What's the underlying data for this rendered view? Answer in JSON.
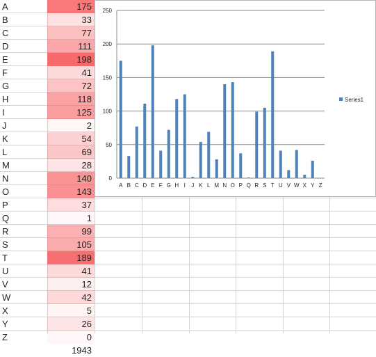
{
  "sheet": {
    "rows": [
      {
        "label": "A",
        "value": 175
      },
      {
        "label": "B",
        "value": 33
      },
      {
        "label": "C",
        "value": 77
      },
      {
        "label": "D",
        "value": 111
      },
      {
        "label": "E",
        "value": 198
      },
      {
        "label": "F",
        "value": 41
      },
      {
        "label": "G",
        "value": 72
      },
      {
        "label": "H",
        "value": 118
      },
      {
        "label": "I",
        "value": 125
      },
      {
        "label": "J",
        "value": 2
      },
      {
        "label": "K",
        "value": 54
      },
      {
        "label": "L",
        "value": 69
      },
      {
        "label": "M",
        "value": 28
      },
      {
        "label": "N",
        "value": 140
      },
      {
        "label": "O",
        "value": 143
      },
      {
        "label": "P",
        "value": 37
      },
      {
        "label": "Q",
        "value": 1
      },
      {
        "label": "R",
        "value": 99
      },
      {
        "label": "S",
        "value": 105
      },
      {
        "label": "T",
        "value": 189
      },
      {
        "label": "U",
        "value": 41
      },
      {
        "label": "V",
        "value": 12
      },
      {
        "label": "W",
        "value": 42
      },
      {
        "label": "X",
        "value": 5
      },
      {
        "label": "Y",
        "value": 26
      },
      {
        "label": "Z",
        "value": 0
      }
    ],
    "total": "1943",
    "heat_color": "#f8696b"
  },
  "chart_data": {
    "type": "bar",
    "categories": [
      "A",
      "B",
      "C",
      "D",
      "E",
      "F",
      "G",
      "H",
      "I",
      "J",
      "K",
      "L",
      "M",
      "N",
      "O",
      "P",
      "Q",
      "R",
      "S",
      "T",
      "U",
      "V",
      "W",
      "X",
      "Y",
      "Z"
    ],
    "series": [
      {
        "name": "Series1",
        "values": [
          175,
          33,
          77,
          111,
          198,
          41,
          72,
          118,
          125,
          2,
          54,
          69,
          28,
          140,
          143,
          37,
          1,
          99,
          105,
          189,
          41,
          12,
          42,
          5,
          26,
          0
        ]
      }
    ],
    "yticks": [
      "0",
      "50",
      "100",
      "150",
      "200",
      "250"
    ],
    "ylim": [
      0,
      250
    ],
    "grid": true,
    "legend_position": "right",
    "bar_color": "#4f81bd"
  }
}
